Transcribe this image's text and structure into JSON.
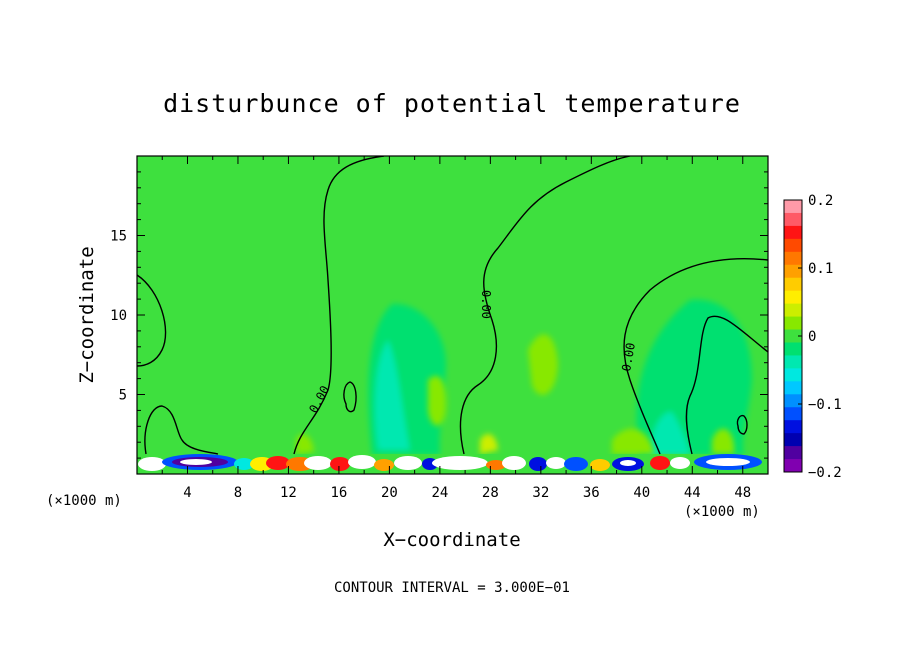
{
  "chart_data": {
    "type": "heatmap",
    "title": "disturbunce of potential temperature",
    "xlabel": "X−coordinate",
    "ylabel": "Z−coordinate",
    "x_unit": "(×1000 m)",
    "x_unit_right": "(×1000 m)",
    "xlim": [
      0,
      50
    ],
    "ylim": [
      0,
      20
    ],
    "x_ticks": [
      4,
      8,
      12,
      16,
      20,
      24,
      28,
      32,
      36,
      40,
      44,
      48
    ],
    "x_tick_labels": [
      "4",
      "8",
      "12",
      "16",
      "20",
      "24",
      "28",
      "32",
      "36",
      "40",
      "44",
      "48"
    ],
    "y_ticks": [
      5,
      10,
      15
    ],
    "y_tick_labels": [
      "5",
      "10",
      "15"
    ],
    "colorbar": {
      "min": -0.2,
      "max": 0.2,
      "ticks": [
        0.2,
        0.1,
        0,
        -0.1,
        -0.2
      ],
      "tick_labels": [
        "0.2",
        "0.1",
        "0",
        "−0.1",
        "−0.2"
      ],
      "colors": [
        "#ff9aa8",
        "#ff5a66",
        "#ff1414",
        "#ff4a00",
        "#ff7800",
        "#ffa000",
        "#ffcc00",
        "#ffee00",
        "#ccee00",
        "#88e800",
        "#3ee03e",
        "#00e070",
        "#00e8b0",
        "#00e8e0",
        "#00c8ff",
        "#0090ff",
        "#0050ff",
        "#0010e0",
        "#0000b0",
        "#5000a0",
        "#8000b0"
      ]
    },
    "background_value": 0,
    "contour_label": "0.00",
    "contour_interval": "CONTOUR INTERVAL = 3.000E−01"
  }
}
